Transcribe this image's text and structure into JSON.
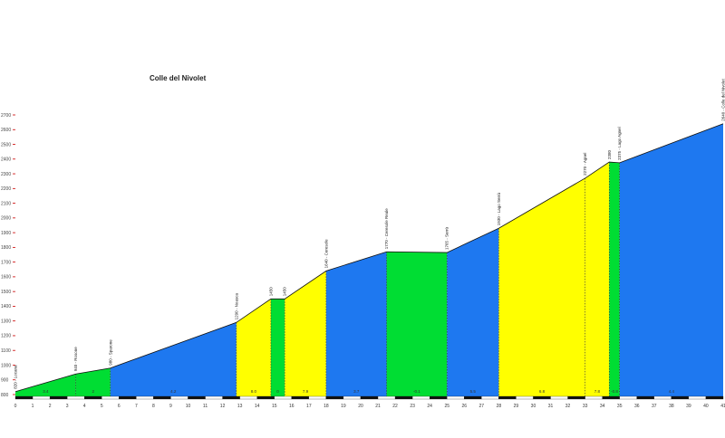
{
  "chart_data": {
    "type": "area",
    "title": "Colle del Nivolet",
    "xlabel": "",
    "ylabel": "",
    "xlim": [
      0,
      41
    ],
    "ylim": [
      800,
      2700
    ],
    "y_ticks": [
      800,
      900,
      1000,
      1100,
      1200,
      1300,
      1400,
      1500,
      1600,
      1700,
      1800,
      1900,
      2000,
      2100,
      2200,
      2300,
      2400,
      2500,
      2600,
      2700
    ],
    "y_tick_labels": [
      "800",
      "900",
      "1000",
      "1100",
      "1200",
      "1300",
      "1400",
      "1500",
      "1600",
      "1700",
      "1800",
      "1900",
      "2000",
      "2100",
      "2200",
      "2300",
      "2400",
      "2500",
      "2600",
      "2700"
    ],
    "x_ticks": [
      0,
      1,
      2,
      3,
      4,
      5,
      6,
      7,
      8,
      9,
      10,
      11,
      12,
      13,
      14,
      15,
      16,
      17,
      18,
      19,
      20,
      21,
      22,
      23,
      24,
      25,
      26,
      27,
      28,
      29,
      30,
      31,
      32,
      33,
      34,
      35,
      36,
      37,
      38,
      39,
      40,
      41
    ],
    "x_tick_labels": [
      "0",
      "1",
      "2",
      "3",
      "4",
      "5",
      "6",
      "7",
      "8",
      "9",
      "10",
      "11",
      "12",
      "13",
      "14",
      "15",
      "16",
      "17",
      "18",
      "19",
      "20",
      "21",
      "22",
      "23",
      "24",
      "25",
      "26",
      "27",
      "28",
      "29",
      "30",
      "31",
      "32",
      "33",
      "34",
      "35",
      "36",
      "37",
      "38",
      "39",
      "40",
      "41"
    ],
    "grid": false,
    "legend": "none",
    "profile": [
      {
        "x": 0,
        "y": 820
      },
      {
        "x": 3.5,
        "y": 940
      },
      {
        "x": 5.5,
        "y": 980
      },
      {
        "x": 12.8,
        "y": 1290
      },
      {
        "x": 14.8,
        "y": 1450
      },
      {
        "x": 15.6,
        "y": 1450
      },
      {
        "x": 18,
        "y": 1640
      },
      {
        "x": 21.5,
        "y": 1770
      },
      {
        "x": 25,
        "y": 1765
      },
      {
        "x": 28,
        "y": 1930
      },
      {
        "x": 33,
        "y": 2270
      },
      {
        "x": 34.4,
        "y": 2380
      },
      {
        "x": 35,
        "y": 2375
      },
      {
        "x": 41,
        "y": 2640
      }
    ],
    "segments": [
      {
        "from": 0,
        "to": 3.5,
        "gradient": "3.4",
        "color": "#00dd33"
      },
      {
        "from": 3.5,
        "to": 5.5,
        "gradient": "2",
        "color": "#00dd33"
      },
      {
        "from": 5.5,
        "to": 12.8,
        "gradient": "4.2",
        "color": "#1e78f0"
      },
      {
        "from": 12.8,
        "to": 14.8,
        "gradient": "8.0",
        "color": "#ffff00"
      },
      {
        "from": 14.8,
        "to": 15.6,
        "gradient": "0",
        "color": "#00dd33"
      },
      {
        "from": 15.6,
        "to": 18,
        "gradient": "7.9",
        "color": "#ffff00"
      },
      {
        "from": 18,
        "to": 21.5,
        "gradient": "3.7",
        "color": "#1e78f0"
      },
      {
        "from": 21.5,
        "to": 25,
        "gradient": "-0.1",
        "color": "#00dd33"
      },
      {
        "from": 25,
        "to": 28,
        "gradient": "5.5",
        "color": "#1e78f0"
      },
      {
        "from": 28,
        "to": 33,
        "gradient": "6.8",
        "color": "#ffff00"
      },
      {
        "from": 33,
        "to": 34.4,
        "gradient": "7.8",
        "color": "#ffff00"
      },
      {
        "from": 34.4,
        "to": 35,
        "gradient": "-0.8",
        "color": "#00dd33"
      },
      {
        "from": 35,
        "to": 41,
        "gradient": "4.4",
        "color": "#1e78f0"
      }
    ],
    "points_of_interest": [
      {
        "x": 0,
        "y": 820,
        "label": "820 - Locana"
      },
      {
        "x": 3.5,
        "y": 940,
        "label": "940 - Rosone"
      },
      {
        "x": 5.5,
        "y": 980,
        "label": "980 - Sparone"
      },
      {
        "x": 12.8,
        "y": 1290,
        "label": "1290 - Noasca"
      },
      {
        "x": 14.8,
        "y": 1450,
        "label": "1450"
      },
      {
        "x": 15.6,
        "y": 1450,
        "label": "1450"
      },
      {
        "x": 18,
        "y": 1640,
        "label": "1640 - Ceresole"
      },
      {
        "x": 21.5,
        "y": 1770,
        "label": "1770 - Ceresole Reale"
      },
      {
        "x": 25,
        "y": 1765,
        "label": "1765 - Serrù"
      },
      {
        "x": 28,
        "y": 1930,
        "label": "1930 - Lago Serrù"
      },
      {
        "x": 33,
        "y": 2270,
        "label": "2270 - Agnel"
      },
      {
        "x": 34.4,
        "y": 2380,
        "label": "2380"
      },
      {
        "x": 35,
        "y": 2375,
        "label": "2375 - Lago Agnel"
      },
      {
        "x": 41,
        "y": 2640,
        "label": "2640 - Colle del Nivolet"
      }
    ]
  }
}
